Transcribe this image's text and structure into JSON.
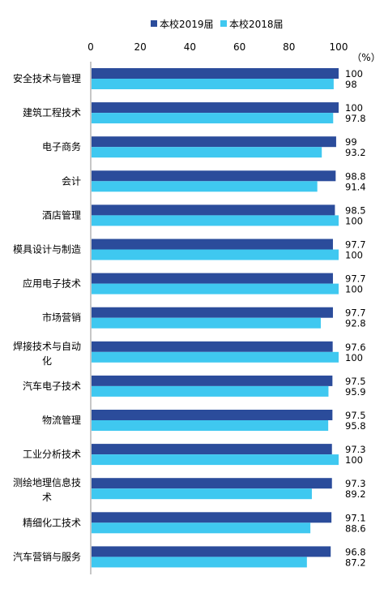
{
  "chart_data": {
    "type": "bar",
    "orientation": "horizontal",
    "unit_label": "（%）",
    "xlim": [
      0,
      100
    ],
    "x_ticks": [
      "0",
      "20",
      "40",
      "60",
      "80",
      "100"
    ],
    "legend_position": "top",
    "categories": [
      "安全技术与管理",
      "建筑工程技术",
      "电子商务",
      "会计",
      "酒店管理",
      "模具设计与制造",
      "应用电子技术",
      "市场营销",
      "焊接技术与自动化",
      "汽车电子技术",
      "物流管理",
      "工业分析技术",
      "测绘地理信息技术",
      "精细化工技术",
      "汽车营销与服务"
    ],
    "series": [
      {
        "name": "本校2019届",
        "color": "#2B4C9B",
        "values": [
          100,
          100,
          99,
          98.8,
          98.5,
          97.7,
          97.7,
          97.7,
          97.6,
          97.5,
          97.5,
          97.3,
          97.3,
          97.1,
          96.8
        ]
      },
      {
        "name": "本校2018届",
        "color": "#3FC8F0",
        "values": [
          98,
          97.8,
          93.2,
          91.4,
          100,
          100,
          100,
          92.8,
          100,
          95.9,
          95.8,
          100,
          89.2,
          88.6,
          87.2
        ]
      }
    ]
  }
}
